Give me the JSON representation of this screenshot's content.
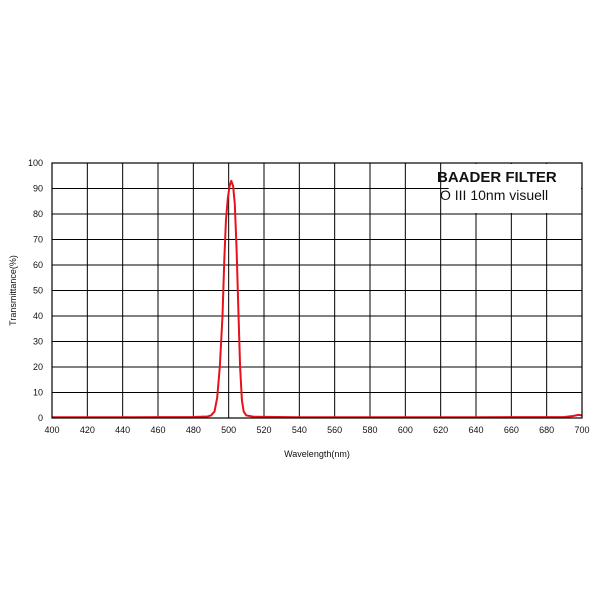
{
  "chart_data": {
    "type": "line",
    "legend": {
      "title": "BAADER FILTER",
      "subtitle": "O III 10nm visuell",
      "placement": "top-right"
    },
    "xlabel": "Wavelength(nm)",
    "ylabel": "Transmittance(%)",
    "xlim": [
      400,
      700
    ],
    "ylim": [
      0,
      100
    ],
    "xticks": [
      400,
      420,
      440,
      460,
      480,
      500,
      520,
      540,
      560,
      580,
      600,
      620,
      640,
      660,
      680,
      700
    ],
    "yticks": [
      0,
      10,
      20,
      30,
      40,
      50,
      60,
      70,
      80,
      90,
      100
    ],
    "grid": true,
    "line_color": "#e8101a",
    "series": [
      {
        "points": [
          [
            400,
            0.3
          ],
          [
            440,
            0.3
          ],
          [
            480,
            0.4
          ],
          [
            488,
            0.6
          ],
          [
            490,
            1
          ],
          [
            492,
            2.5
          ],
          [
            493.5,
            8
          ],
          [
            495,
            20
          ],
          [
            496.5,
            40
          ],
          [
            497.5,
            62
          ],
          [
            498.5,
            78
          ],
          [
            499.5,
            86
          ],
          [
            500.5,
            91
          ],
          [
            501.5,
            93
          ],
          [
            502.5,
            91
          ],
          [
            503.5,
            84
          ],
          [
            504.5,
            66
          ],
          [
            505.5,
            42
          ],
          [
            506.5,
            20
          ],
          [
            507.5,
            7
          ],
          [
            508.5,
            2.5
          ],
          [
            510,
            1
          ],
          [
            514,
            0.5
          ],
          [
            540,
            0.3
          ],
          [
            640,
            0.3
          ],
          [
            690,
            0.4
          ],
          [
            695,
            0.8
          ],
          [
            698,
            1.2
          ],
          [
            700,
            1.0
          ]
        ]
      }
    ]
  }
}
